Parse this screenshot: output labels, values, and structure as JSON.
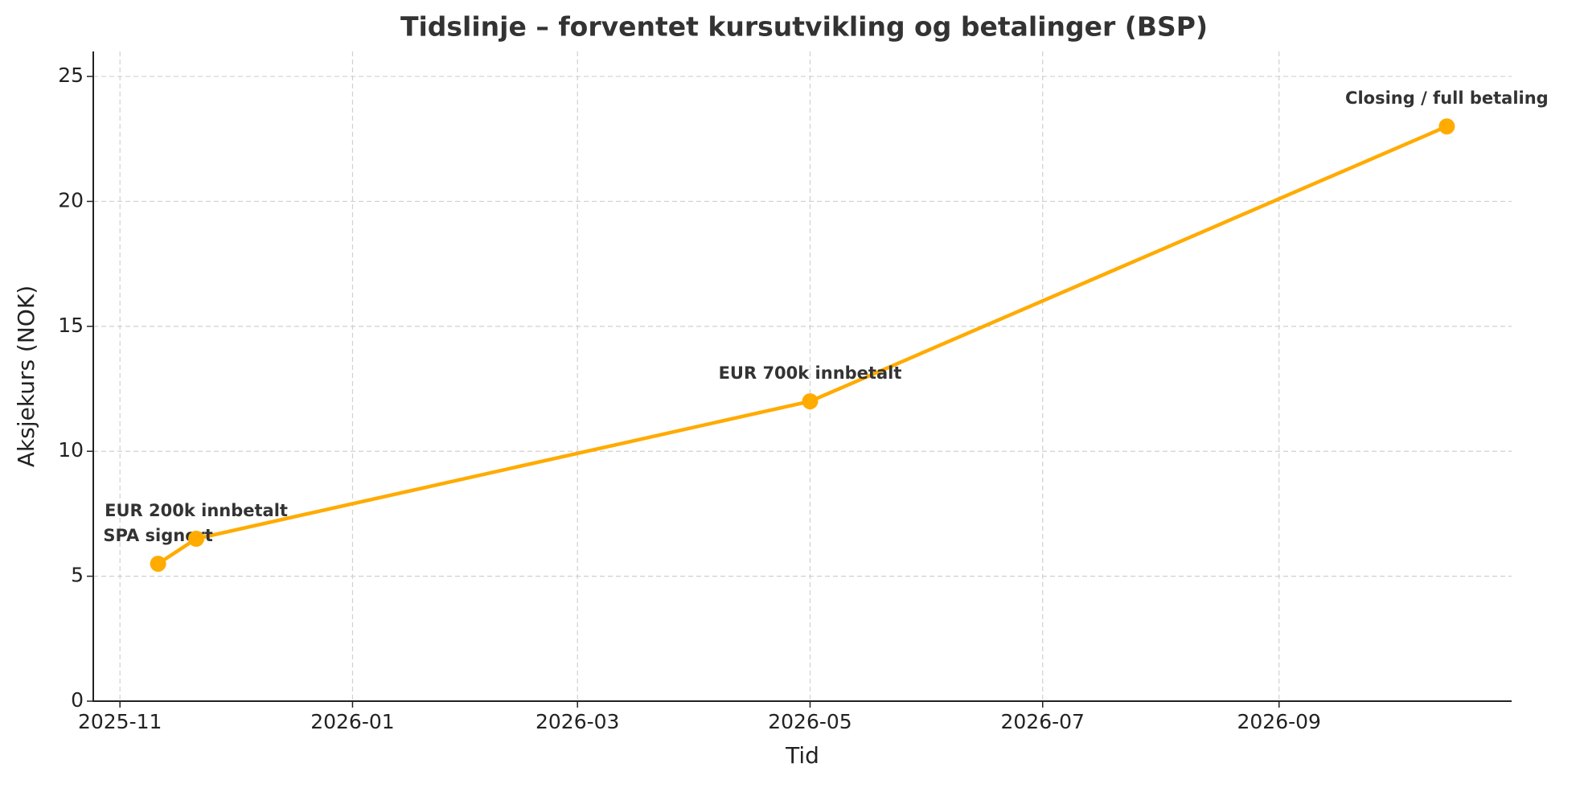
{
  "chart_data": {
    "type": "line",
    "title": "Tidslinje – forventet kursutvikling og betalinger (BSP)",
    "x_label": "Tid",
    "y_label": "Aksjekurs (NOK)",
    "x": [
      "2025-11-11",
      "2025-11-21",
      "2026-05-01",
      "2026-10-15"
    ],
    "series": [
      {
        "color": "#ffab00",
        "values": [
          5.5,
          6.5,
          12,
          23
        ],
        "labels": [
          "SPA signert",
          "EUR 200k innbetalt",
          "EUR 700k innbetalt",
          "Closing / full betaling"
        ]
      }
    ],
    "xlim": [
      "2025-10-25",
      "2026-11-01"
    ],
    "xticks": [
      {
        "value": "2025-11-01",
        "label": "2025-11"
      },
      {
        "value": "2026-01-01",
        "label": "2026-01"
      },
      {
        "value": "2026-03-01",
        "label": "2026-03"
      },
      {
        "value": "2026-05-01",
        "label": "2026-05"
      },
      {
        "value": "2026-07-01",
        "label": "2026-07"
      },
      {
        "value": "2026-09-01",
        "label": "2026-09"
      }
    ],
    "ylim": [
      0,
      26
    ],
    "yticks": [
      0,
      5,
      10,
      15,
      20,
      25
    ],
    "grid": true
  }
}
